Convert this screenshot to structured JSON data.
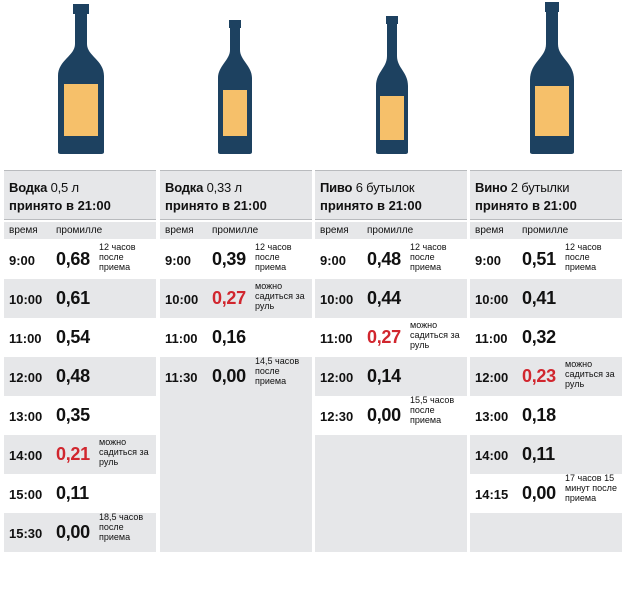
{
  "colors": {
    "bottle": "#1d4160",
    "label": "#f6c06a",
    "shade": "#e6e7e9",
    "red": "#d1262e"
  },
  "columns": [
    {
      "drink": "Водка",
      "amount": "0,5 л",
      "taken": "принято в 21:00",
      "time_header": "время",
      "promille_header": "промилле",
      "rows": [
        {
          "time": "9:00",
          "value": "0,68",
          "note": "12 часов после приема",
          "red": false
        },
        {
          "time": "10:00",
          "value": "0,61",
          "note": "",
          "red": false
        },
        {
          "time": "11:00",
          "value": "0,54",
          "note": "",
          "red": false
        },
        {
          "time": "12:00",
          "value": "0,48",
          "note": "",
          "red": false
        },
        {
          "time": "13:00",
          "value": "0,35",
          "note": "",
          "red": false
        },
        {
          "time": "14:00",
          "value": "0,21",
          "note": "можно садиться за руль",
          "red": true
        },
        {
          "time": "15:00",
          "value": "0,11",
          "note": "",
          "red": false
        },
        {
          "time": "15:30",
          "value": "0,00",
          "note": "18,5 часов после приема",
          "red": false
        }
      ]
    },
    {
      "drink": "Водка",
      "amount": "0,33 л",
      "taken": "принято в 21:00",
      "time_header": "время",
      "promille_header": "промилле",
      "rows": [
        {
          "time": "9:00",
          "value": "0,39",
          "note": "12 часов после приема",
          "red": false
        },
        {
          "time": "10:00",
          "value": "0,27",
          "note": "можно садиться за руль",
          "red": true
        },
        {
          "time": "11:00",
          "value": "0,16",
          "note": "",
          "red": false
        },
        {
          "time": "11:30",
          "value": "0,00",
          "note": "14,5 часов после приема",
          "red": false
        }
      ]
    },
    {
      "drink": "Пиво",
      "amount": "6 бутылок",
      "taken": "принято в 21:00",
      "time_header": "время",
      "promille_header": "промилле",
      "rows": [
        {
          "time": "9:00",
          "value": "0,48",
          "note": "12 часов после приема",
          "red": false
        },
        {
          "time": "10:00",
          "value": "0,44",
          "note": "",
          "red": false
        },
        {
          "time": "11:00",
          "value": "0,27",
          "note": "можно садиться за руль",
          "red": true
        },
        {
          "time": "12:00",
          "value": "0,14",
          "note": "",
          "red": false
        },
        {
          "time": "12:30",
          "value": "0,00",
          "note": "15,5 часов после приема",
          "red": false
        }
      ]
    },
    {
      "drink": "Вино",
      "amount": "2 бутылки",
      "taken": "принято в 21:00",
      "time_header": "время",
      "promille_header": "промилле",
      "rows": [
        {
          "time": "9:00",
          "value": "0,51",
          "note": "12 часов после приема",
          "red": false
        },
        {
          "time": "10:00",
          "value": "0,41",
          "note": "",
          "red": false
        },
        {
          "time": "11:00",
          "value": "0,32",
          "note": "",
          "red": false
        },
        {
          "time": "12:00",
          "value": "0,23",
          "note": "можно садиться за руль",
          "red": true
        },
        {
          "time": "13:00",
          "value": "0,18",
          "note": "",
          "red": false
        },
        {
          "time": "14:00",
          "value": "0,11",
          "note": "",
          "red": false
        },
        {
          "time": "14:15",
          "value": "0,00",
          "note": "17 часов 15 минут после приема",
          "red": false
        }
      ]
    }
  ]
}
